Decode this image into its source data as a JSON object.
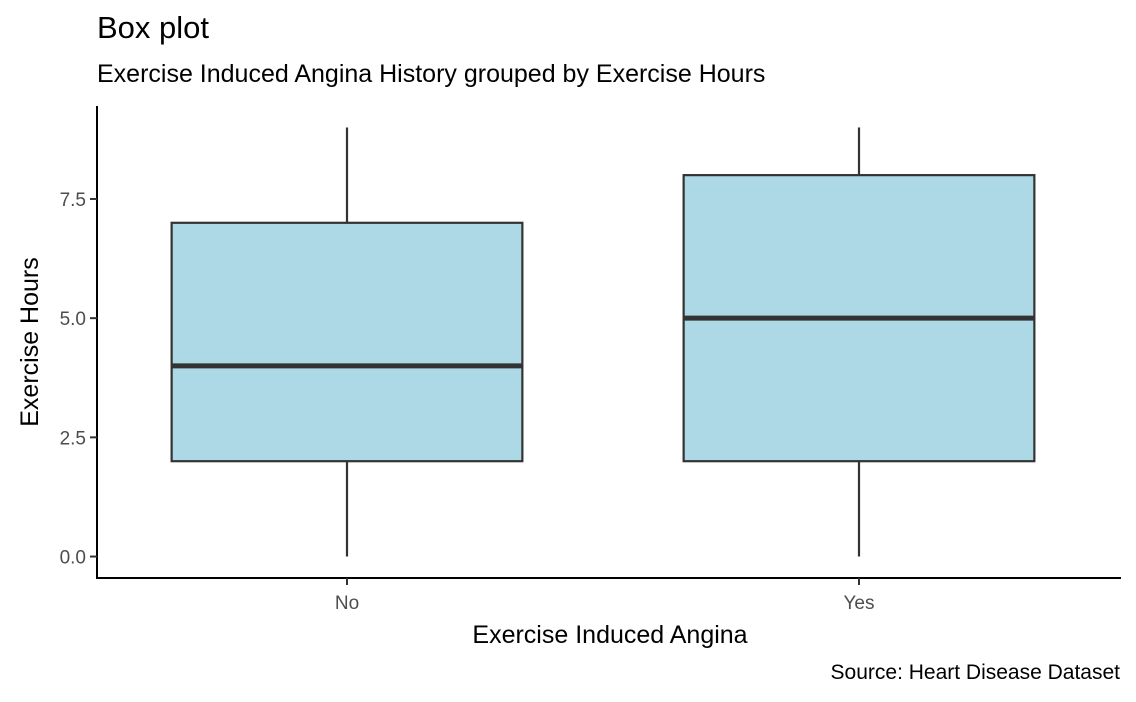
{
  "chart_data": {
    "type": "box",
    "title": "Box plot",
    "subtitle": "Exercise Induced Angina History grouped by Exercise Hours",
    "caption": "Source: Heart Disease Dataset",
    "xlabel": "Exercise Induced Angina",
    "ylabel": "Exercise Hours",
    "categories": [
      "No",
      "Yes"
    ],
    "boxes": [
      {
        "category": "No",
        "min": 0,
        "q1": 2,
        "median": 4,
        "q3": 7,
        "max": 9
      },
      {
        "category": "Yes",
        "min": 0,
        "q1": 2,
        "median": 5,
        "q3": 8,
        "max": 9
      }
    ],
    "y_ticks": [
      0.0,
      2.5,
      5.0,
      7.5
    ],
    "y_tick_labels": [
      "0.0",
      "2.5",
      "5.0",
      "7.5"
    ],
    "ylim": [
      -0.45,
      9.45
    ],
    "grid": false,
    "legend": "none",
    "colors": {
      "box_fill": "#add8e6",
      "box_stroke": "#333333",
      "axis": "#000000",
      "tick_label": "#4d4d4d"
    }
  }
}
